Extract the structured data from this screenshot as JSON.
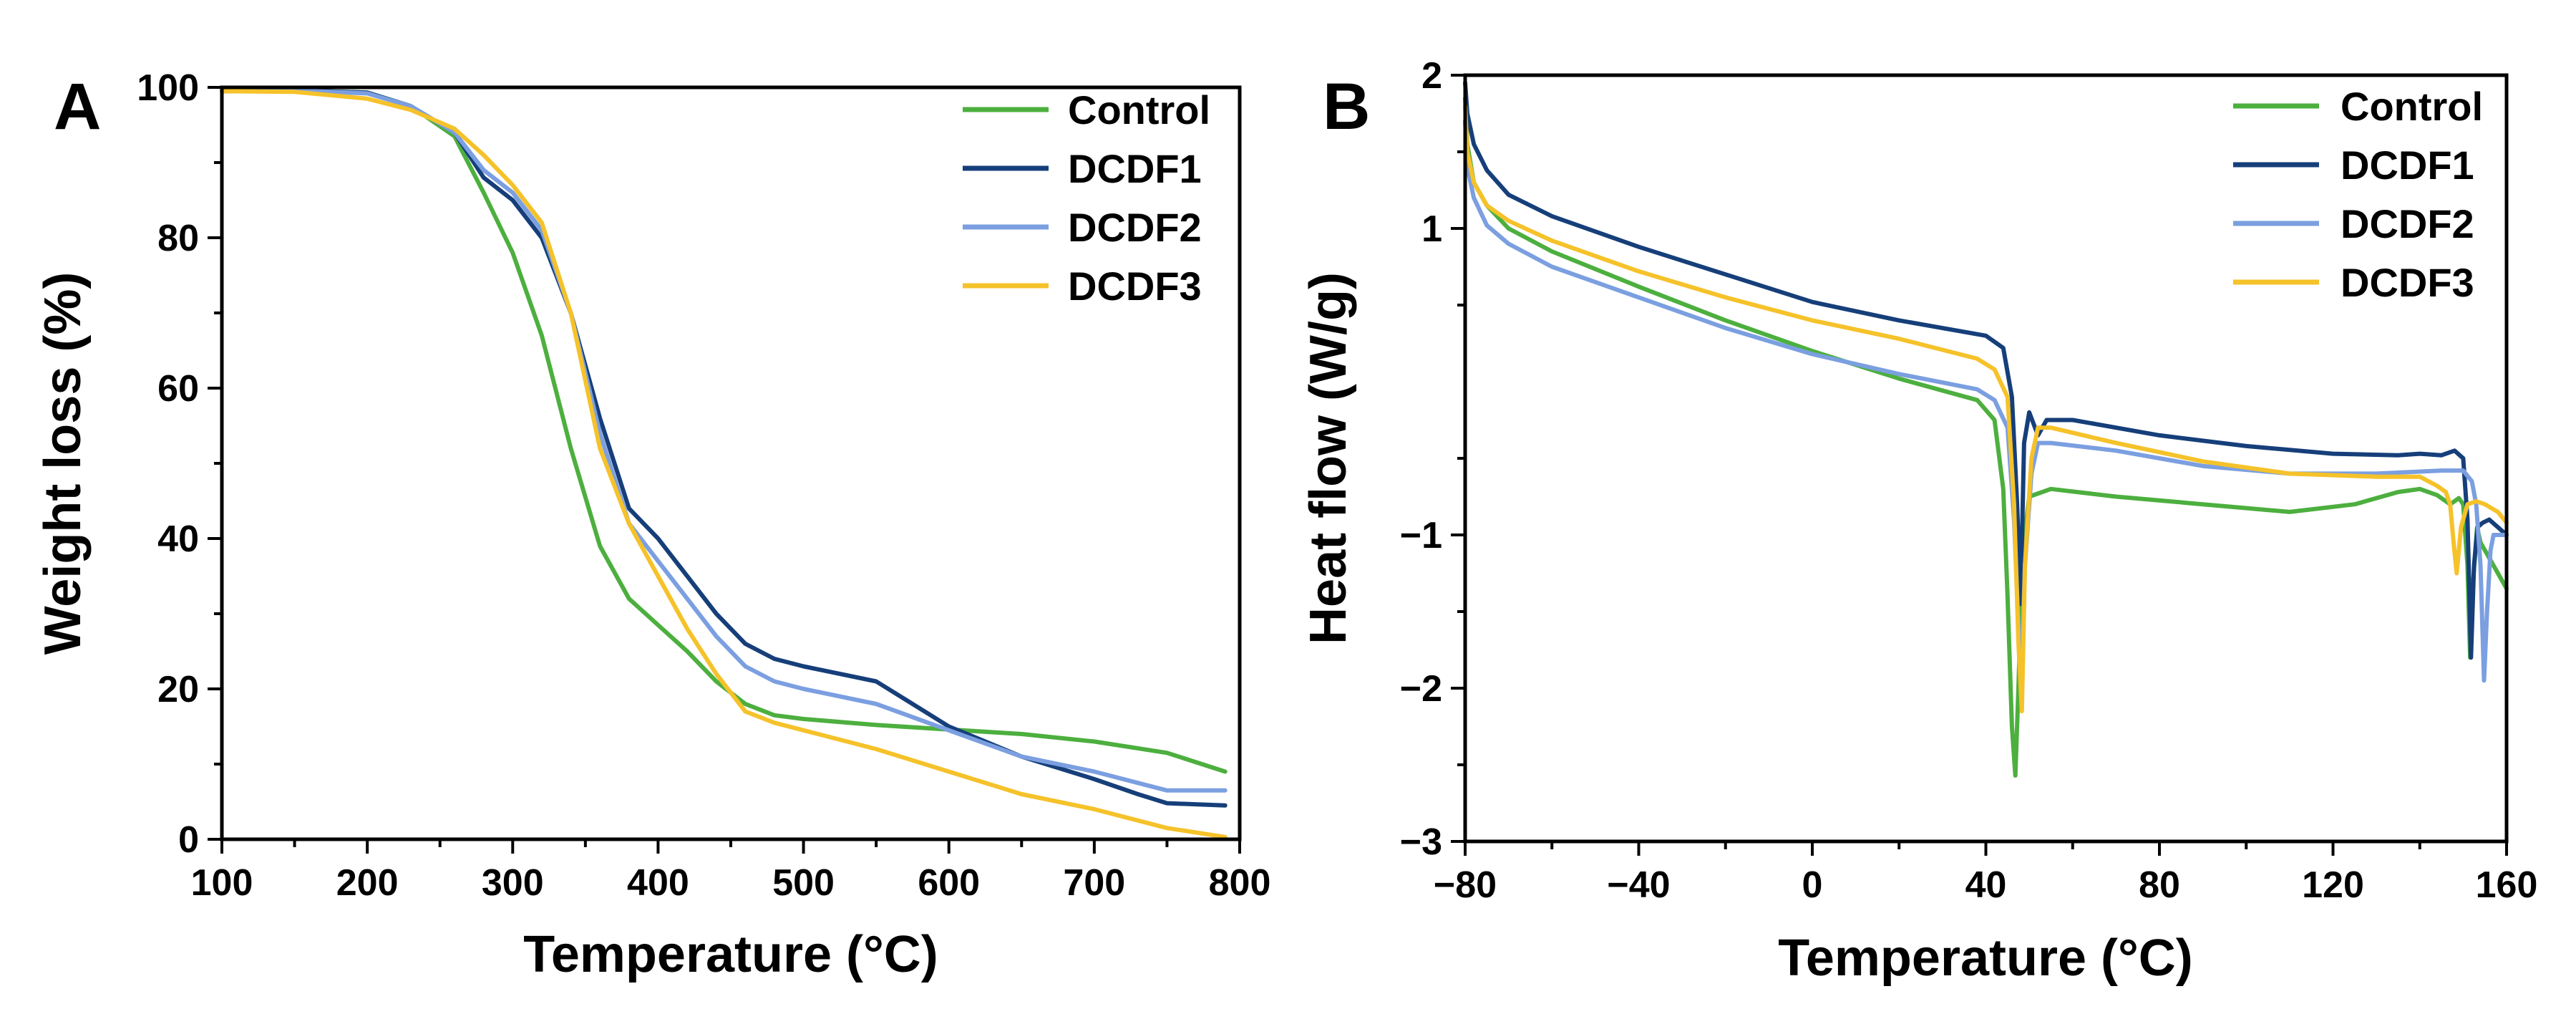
{
  "chart_data": [
    {
      "panel": "A",
      "type": "line",
      "xlabel": "Temperature (°C)",
      "ylabel": "Weight loss (%)",
      "xlim": [
        100,
        800
      ],
      "ylim": [
        0,
        100
      ],
      "xticks": [
        100,
        200,
        300,
        400,
        500,
        600,
        700,
        800
      ],
      "yticks": [
        0,
        20,
        40,
        60,
        80,
        100
      ],
      "xtick_labels": [
        "100",
        "200",
        "300",
        "400",
        "500",
        "600",
        "700",
        "800"
      ],
      "ytick_labels": [
        "0",
        "20",
        "40",
        "60",
        "80",
        "100"
      ],
      "legend_position": "top-right",
      "series": [
        {
          "name": "Control",
          "color": "#4caf3e",
          "x": [
            100,
            150,
            200,
            230,
            260,
            280,
            300,
            320,
            340,
            360,
            380,
            400,
            420,
            440,
            460,
            480,
            500,
            550,
            600,
            650,
            700,
            750,
            790
          ],
          "y": [
            99.5,
            99.6,
            99.3,
            97.5,
            93.5,
            86,
            78,
            67,
            52,
            39,
            32,
            28.5,
            25,
            21,
            18,
            16.5,
            16,
            15.2,
            14.6,
            14,
            13,
            11.5,
            9
          ]
        },
        {
          "name": "DCDF1",
          "color": "#163f7a",
          "x": [
            100,
            150,
            200,
            230,
            260,
            280,
            300,
            320,
            340,
            360,
            380,
            400,
            420,
            440,
            460,
            480,
            500,
            550,
            600,
            650,
            700,
            730,
            750,
            790
          ],
          "y": [
            99.5,
            99.6,
            99.3,
            97.5,
            94,
            88,
            85,
            80,
            70,
            56,
            44,
            40,
            35,
            30,
            26,
            24,
            23,
            21,
            15,
            11,
            8,
            6,
            4.8,
            4.5
          ]
        },
        {
          "name": "DCDF2",
          "color": "#7b9fe0",
          "x": [
            100,
            150,
            200,
            230,
            260,
            280,
            300,
            320,
            340,
            360,
            380,
            400,
            420,
            440,
            460,
            480,
            500,
            550,
            600,
            650,
            700,
            730,
            750,
            790
          ],
          "y": [
            99.5,
            99.6,
            99.2,
            97.5,
            94,
            89,
            86,
            81,
            70,
            54,
            42,
            37,
            32,
            27,
            23,
            21,
            20,
            18,
            14.5,
            11,
            9,
            7.5,
            6.5,
            6.5
          ]
        },
        {
          "name": "DCDF3",
          "color": "#f5c22a",
          "x": [
            100,
            150,
            200,
            230,
            260,
            280,
            300,
            320,
            340,
            360,
            380,
            400,
            420,
            440,
            460,
            480,
            500,
            550,
            600,
            650,
            700,
            750,
            790
          ],
          "y": [
            99.5,
            99.4,
            98.5,
            97,
            94.5,
            91,
            87,
            82,
            70,
            52,
            42,
            35,
            28,
            22,
            17,
            15.5,
            14.5,
            12,
            9,
            6,
            4,
            1.5,
            0.3
          ]
        }
      ]
    },
    {
      "panel": "B",
      "type": "line",
      "xlabel": "Temperature (°C)",
      "ylabel": "Heat flow (W/g)",
      "xlim": [
        -80,
        160
      ],
      "ylim": [
        -3,
        2
      ],
      "xticks": [
        -80,
        -40,
        0,
        40,
        80,
        120,
        160
      ],
      "yticks": [
        -3,
        -2,
        -1,
        1,
        2
      ],
      "xtick_labels": [
        "−80",
        "−40",
        "0",
        "40",
        "80",
        "120",
        "160"
      ],
      "ytick_labels": [
        "−3",
        "−2",
        "−1",
        "1",
        "2"
      ],
      "legend_position": "top-right",
      "series": [
        {
          "name": "Control",
          "color": "#4caf3e",
          "x": [
            -80,
            -79.5,
            -78,
            -75,
            -70,
            -60,
            -40,
            -20,
            0,
            20,
            38,
            42,
            44,
            45,
            46,
            46.8,
            47.5,
            48.5,
            50,
            55,
            70,
            90,
            110,
            125,
            135,
            140,
            144,
            146,
            147,
            148,
            149,
            150,
            151,
            151.6,
            152.3,
            153.2,
            154,
            155,
            156,
            158,
            160
          ],
          "y": [
            1.85,
            1.55,
            1.3,
            1.15,
            1.0,
            0.85,
            0.62,
            0.4,
            0.2,
            0.02,
            -0.12,
            -0.25,
            -0.7,
            -1.4,
            -2.25,
            -2.57,
            -2.0,
            -1.1,
            -0.75,
            -0.7,
            -0.75,
            -0.8,
            -0.85,
            -0.8,
            -0.72,
            -0.7,
            -0.74,
            -0.78,
            -0.8,
            -0.78,
            -0.76,
            -0.8,
            -1.2,
            -1.8,
            -1.3,
            -0.95,
            -1.05,
            -1.1,
            -1.15,
            -1.25,
            -1.35
          ]
        },
        {
          "name": "DCDF1",
          "color": "#163f7a",
          "x": [
            -80,
            -79.5,
            -78,
            -75,
            -70,
            -60,
            -40,
            -20,
            0,
            20,
            40,
            44,
            46,
            47.2,
            48,
            48.8,
            50,
            52,
            54,
            60,
            80,
            100,
            120,
            135,
            140,
            145,
            148,
            150,
            151,
            151.8,
            152.5,
            153.3,
            154.5,
            156,
            158,
            160
          ],
          "y": [
            1.95,
            1.75,
            1.55,
            1.38,
            1.22,
            1.08,
            0.88,
            0.7,
            0.52,
            0.4,
            0.3,
            0.22,
            -0.1,
            -0.8,
            -1.45,
            -0.4,
            -0.2,
            -0.35,
            -0.25,
            -0.25,
            -0.35,
            -0.42,
            -0.47,
            -0.48,
            -0.47,
            -0.48,
            -0.45,
            -0.5,
            -0.9,
            -1.8,
            -1.2,
            -0.95,
            -0.92,
            -0.9,
            -0.95,
            -1.0
          ]
        },
        {
          "name": "DCDF2",
          "color": "#7b9fe0",
          "x": [
            -80,
            -79.5,
            -78,
            -75,
            -70,
            -60,
            -40,
            -20,
            0,
            20,
            38,
            42,
            45,
            46.5,
            47.5,
            48.2,
            49,
            50.5,
            52,
            55,
            70,
            90,
            110,
            130,
            145,
            150,
            152,
            153,
            154,
            154.8,
            155.5,
            156.3,
            157,
            158,
            160
          ],
          "y": [
            1.7,
            1.4,
            1.2,
            1.02,
            0.9,
            0.75,
            0.55,
            0.35,
            0.18,
            0.05,
            -0.05,
            -0.12,
            -0.3,
            -0.9,
            -1.6,
            -1.9,
            -1.2,
            -0.6,
            -0.4,
            -0.4,
            -0.45,
            -0.55,
            -0.6,
            -0.6,
            -0.58,
            -0.58,
            -0.65,
            -0.8,
            -1.2,
            -1.95,
            -1.5,
            -1.1,
            -1.0,
            -1.0,
            -1.0
          ]
        },
        {
          "name": "DCDF3",
          "color": "#f5c22a",
          "x": [
            -80,
            -79.5,
            -78,
            -75,
            -70,
            -60,
            -40,
            -20,
            0,
            20,
            38,
            42,
            45,
            46.5,
            47.5,
            48.3,
            49,
            50.5,
            52,
            55,
            70,
            90,
            110,
            130,
            140,
            144,
            146,
            147,
            147.8,
            148.5,
            149.5,
            151,
            153,
            155,
            158,
            160
          ],
          "y": [
            1.8,
            1.5,
            1.3,
            1.15,
            1.05,
            0.92,
            0.72,
            0.55,
            0.4,
            0.28,
            0.15,
            0.08,
            -0.1,
            -0.8,
            -1.7,
            -2.15,
            -1.2,
            -0.5,
            -0.3,
            -0.3,
            -0.4,
            -0.52,
            -0.6,
            -0.62,
            -0.62,
            -0.68,
            -0.72,
            -0.8,
            -1.05,
            -1.25,
            -0.95,
            -0.8,
            -0.78,
            -0.8,
            -0.85,
            -0.92
          ]
        }
      ]
    }
  ]
}
